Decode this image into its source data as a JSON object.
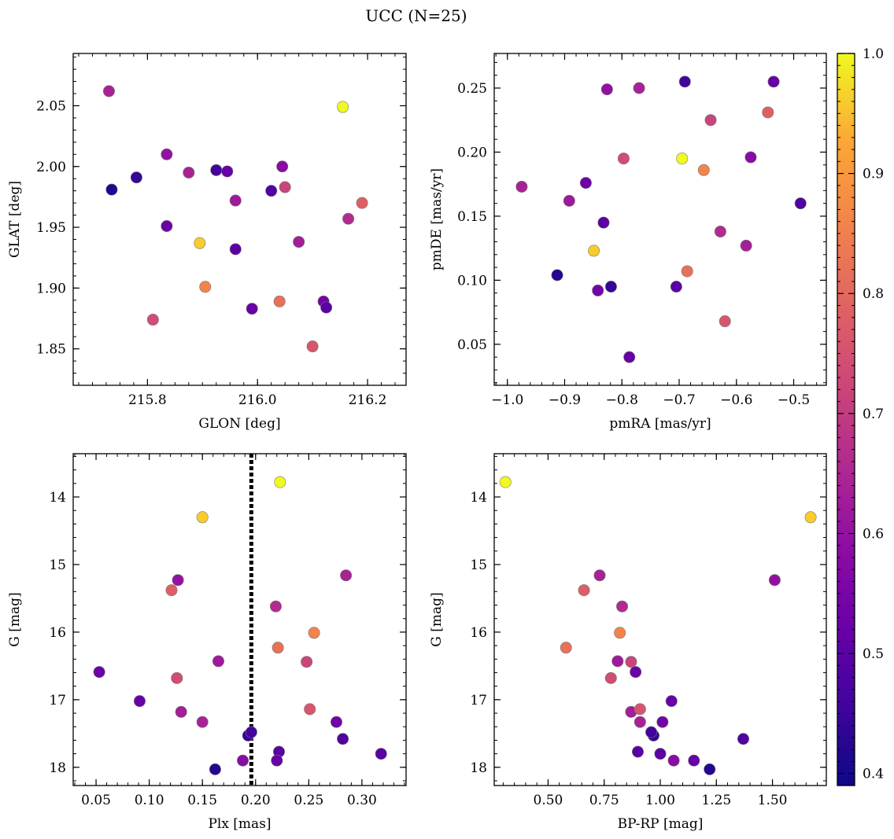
{
  "chart_data": {
    "title": "UCC (N=25)",
    "type": "scatter",
    "colorbar": {
      "colormap": "plasma",
      "vmin": 0.39,
      "vmax": 1.0,
      "ticks": [
        0.4,
        0.5,
        0.6,
        0.7,
        0.8,
        0.9,
        1.0
      ],
      "tick_labels": [
        "0.4",
        "0.5",
        "0.6",
        "0.7",
        "0.8",
        "0.9",
        "1.0"
      ]
    },
    "members": [
      {
        "glon": 215.73,
        "glat": 2.062,
        "pmra": -0.77,
        "pmde": 0.25,
        "plx": 0.285,
        "g": 15.16,
        "bprp": 0.73,
        "prob": 0.64
      },
      {
        "glon": 216.155,
        "glat": 2.049,
        "pmra": -0.695,
        "pmde": 0.195,
        "plx": 0.223,
        "g": 13.78,
        "bprp": 0.31,
        "prob": 1.0
      },
      {
        "glon": 215.735,
        "glat": 1.981,
        "pmra": -0.913,
        "pmde": 0.104,
        "plx": 0.162,
        "g": 18.03,
        "bprp": 1.22,
        "prob": 0.42
      },
      {
        "glon": 215.78,
        "glat": 1.991,
        "pmra": -0.819,
        "pmde": 0.095,
        "plx": 0.193,
        "g": 17.53,
        "bprp": 0.97,
        "prob": 0.44
      },
      {
        "glon": 215.835,
        "glat": 2.01,
        "pmra": -0.826,
        "pmde": 0.249,
        "plx": 0.127,
        "g": 15.23,
        "bprp": 1.51,
        "prob": 0.6
      },
      {
        "glon": 215.875,
        "glat": 1.995,
        "pmra": -0.975,
        "pmde": 0.173,
        "plx": 0.15,
        "g": 17.33,
        "bprp": 0.91,
        "prob": 0.64
      },
      {
        "glon": 215.925,
        "glat": 1.997,
        "pmra": -0.69,
        "pmde": 0.255,
        "plx": 0.196,
        "g": 17.48,
        "bprp": 0.96,
        "prob": 0.46
      },
      {
        "glon": 215.945,
        "glat": 1.996,
        "pmra": -0.535,
        "pmde": 0.255,
        "plx": 0.091,
        "g": 17.02,
        "bprp": 1.05,
        "prob": 0.52
      },
      {
        "glon": 216.045,
        "glat": 2.0,
        "pmra": -0.575,
        "pmde": 0.196,
        "plx": 0.188,
        "g": 17.9,
        "bprp": 1.06,
        "prob": 0.58
      },
      {
        "glon": 216.05,
        "glat": 1.983,
        "pmra": -0.645,
        "pmde": 0.225,
        "plx": 0.248,
        "g": 16.44,
        "bprp": 0.87,
        "prob": 0.72
      },
      {
        "glon": 216.025,
        "glat": 1.98,
        "pmra": -0.488,
        "pmde": 0.16,
        "plx": 0.282,
        "g": 17.58,
        "bprp": 1.37,
        "prob": 0.48
      },
      {
        "glon": 216.19,
        "glat": 1.97,
        "pmra": -0.545,
        "pmde": 0.231,
        "plx": 0.121,
        "g": 15.38,
        "bprp": 0.66,
        "prob": 0.78
      },
      {
        "glon": 215.96,
        "glat": 1.972,
        "pmra": -0.892,
        "pmde": 0.162,
        "plx": 0.165,
        "g": 16.43,
        "bprp": 0.81,
        "prob": 0.62
      },
      {
        "glon": 216.165,
        "glat": 1.957,
        "pmra": -0.628,
        "pmde": 0.138,
        "plx": 0.219,
        "g": 15.62,
        "bprp": 0.83,
        "prob": 0.66
      },
      {
        "glon": 215.835,
        "glat": 1.951,
        "pmra": -0.863,
        "pmde": 0.176,
        "plx": 0.053,
        "g": 16.59,
        "bprp": 0.89,
        "prob": 0.53
      },
      {
        "glon": 216.075,
        "glat": 1.938,
        "pmra": -0.583,
        "pmde": 0.127,
        "plx": 0.13,
        "g": 17.18,
        "bprp": 0.87,
        "prob": 0.63
      },
      {
        "glon": 215.895,
        "glat": 1.937,
        "pmra": -0.849,
        "pmde": 0.123,
        "plx": 0.15,
        "g": 14.3,
        "bprp": 1.67,
        "prob": 0.96
      },
      {
        "glon": 215.96,
        "glat": 1.932,
        "pmra": -0.832,
        "pmde": 0.145,
        "plx": 0.222,
        "g": 17.77,
        "bprp": 0.9,
        "prob": 0.5
      },
      {
        "glon": 215.905,
        "glat": 1.901,
        "pmra": -0.657,
        "pmde": 0.186,
        "plx": 0.255,
        "g": 16.01,
        "bprp": 0.82,
        "prob": 0.86
      },
      {
        "glon": 216.04,
        "glat": 1.889,
        "pmra": -0.686,
        "pmde": 0.107,
        "plx": 0.221,
        "g": 16.23,
        "bprp": 0.58,
        "prob": 0.82
      },
      {
        "glon": 216.12,
        "glat": 1.889,
        "pmra": -0.842,
        "pmde": 0.092,
        "plx": 0.276,
        "g": 17.33,
        "bprp": 1.01,
        "prob": 0.54
      },
      {
        "glon": 216.125,
        "glat": 1.884,
        "pmra": -0.705,
        "pmde": 0.095,
        "plx": 0.318,
        "g": 17.8,
        "bprp": 1.0,
        "prob": 0.5
      },
      {
        "glon": 215.99,
        "glat": 1.883,
        "pmra": -0.787,
        "pmde": 0.04,
        "plx": 0.22,
        "g": 17.9,
        "bprp": 1.15,
        "prob": 0.52
      },
      {
        "glon": 215.81,
        "glat": 1.874,
        "pmra": -0.797,
        "pmde": 0.195,
        "plx": 0.126,
        "g": 16.68,
        "bprp": 0.78,
        "prob": 0.74
      },
      {
        "glon": 216.1,
        "glat": 1.852,
        "pmra": -0.62,
        "pmde": 0.068,
        "plx": 0.251,
        "g": 17.14,
        "bprp": 0.91,
        "prob": 0.76
      }
    ],
    "panels": [
      {
        "id": "glon-glat",
        "x": "glon",
        "y": "glat",
        "xlabel": "GLON [deg]",
        "ylabel": "GLAT [deg]",
        "xlim": [
          215.665,
          216.27
        ],
        "ylim": [
          1.82,
          2.093
        ],
        "y_inverted": false,
        "xticks": [
          215.8,
          216.0,
          216.2
        ],
        "xtick_labels": [
          "215.8",
          "216.0",
          "216.2"
        ],
        "xminor": 0.025,
        "yticks": [
          1.85,
          1.9,
          1.95,
          2.0,
          2.05
        ],
        "ytick_labels": [
          "1.85",
          "1.90",
          "1.95",
          "2.00",
          "2.05"
        ],
        "yminor": 0.01
      },
      {
        "id": "pm",
        "x": "pmra",
        "y": "pmde",
        "xlabel": "pmRA [mas/yr]",
        "ylabel": "pmDE [mas/yr]",
        "xlim": [
          -1.023,
          -0.443
        ],
        "ylim": [
          0.018,
          0.277
        ],
        "y_inverted": false,
        "xticks": [
          -1.0,
          -0.9,
          -0.8,
          -0.7,
          -0.6,
          -0.5
        ],
        "xtick_labels": [
          "−1.0",
          "−0.9",
          "−0.8",
          "−0.7",
          "−0.6",
          "−0.5"
        ],
        "xminor": 0.02,
        "yticks": [
          0.05,
          0.1,
          0.15,
          0.2,
          0.25
        ],
        "ytick_labels": [
          "0.05",
          "0.10",
          "0.15",
          "0.20",
          "0.25"
        ],
        "yminor": 0.01
      },
      {
        "id": "plx-g",
        "x": "plx",
        "y": "g",
        "xlabel": "Plx [mas]",
        "ylabel": "G [mag]",
        "xlim": [
          0.0285,
          0.3415
        ],
        "ylim": [
          13.36,
          18.27
        ],
        "y_inverted": true,
        "xticks": [
          0.05,
          0.1,
          0.15,
          0.2,
          0.25,
          0.3
        ],
        "xtick_labels": [
          "0.05",
          "0.10",
          "0.15",
          "0.20",
          "0.25",
          "0.30"
        ],
        "xminor": 0.01,
        "yticks": [
          14,
          15,
          16,
          17,
          18
        ],
        "ytick_labels": [
          "14",
          "15",
          "16",
          "17",
          "18"
        ],
        "yminor": 0.2,
        "vline": 0.196
      },
      {
        "id": "cmd",
        "x": "bprp",
        "y": "g",
        "xlabel": "BP-RP [mag]",
        "ylabel": "G [mag]",
        "xlim": [
          0.26,
          1.74
        ],
        "ylim": [
          13.36,
          18.27
        ],
        "y_inverted": true,
        "xticks": [
          0.5,
          0.75,
          1.0,
          1.25,
          1.5
        ],
        "xtick_labels": [
          "0.50",
          "0.75",
          "1.00",
          "1.25",
          "1.50"
        ],
        "xminor": 0.05,
        "yticks": [
          14,
          15,
          16,
          17,
          18
        ],
        "ytick_labels": [
          "14",
          "15",
          "16",
          "17",
          "18"
        ],
        "yminor": 0.2
      }
    ]
  }
}
